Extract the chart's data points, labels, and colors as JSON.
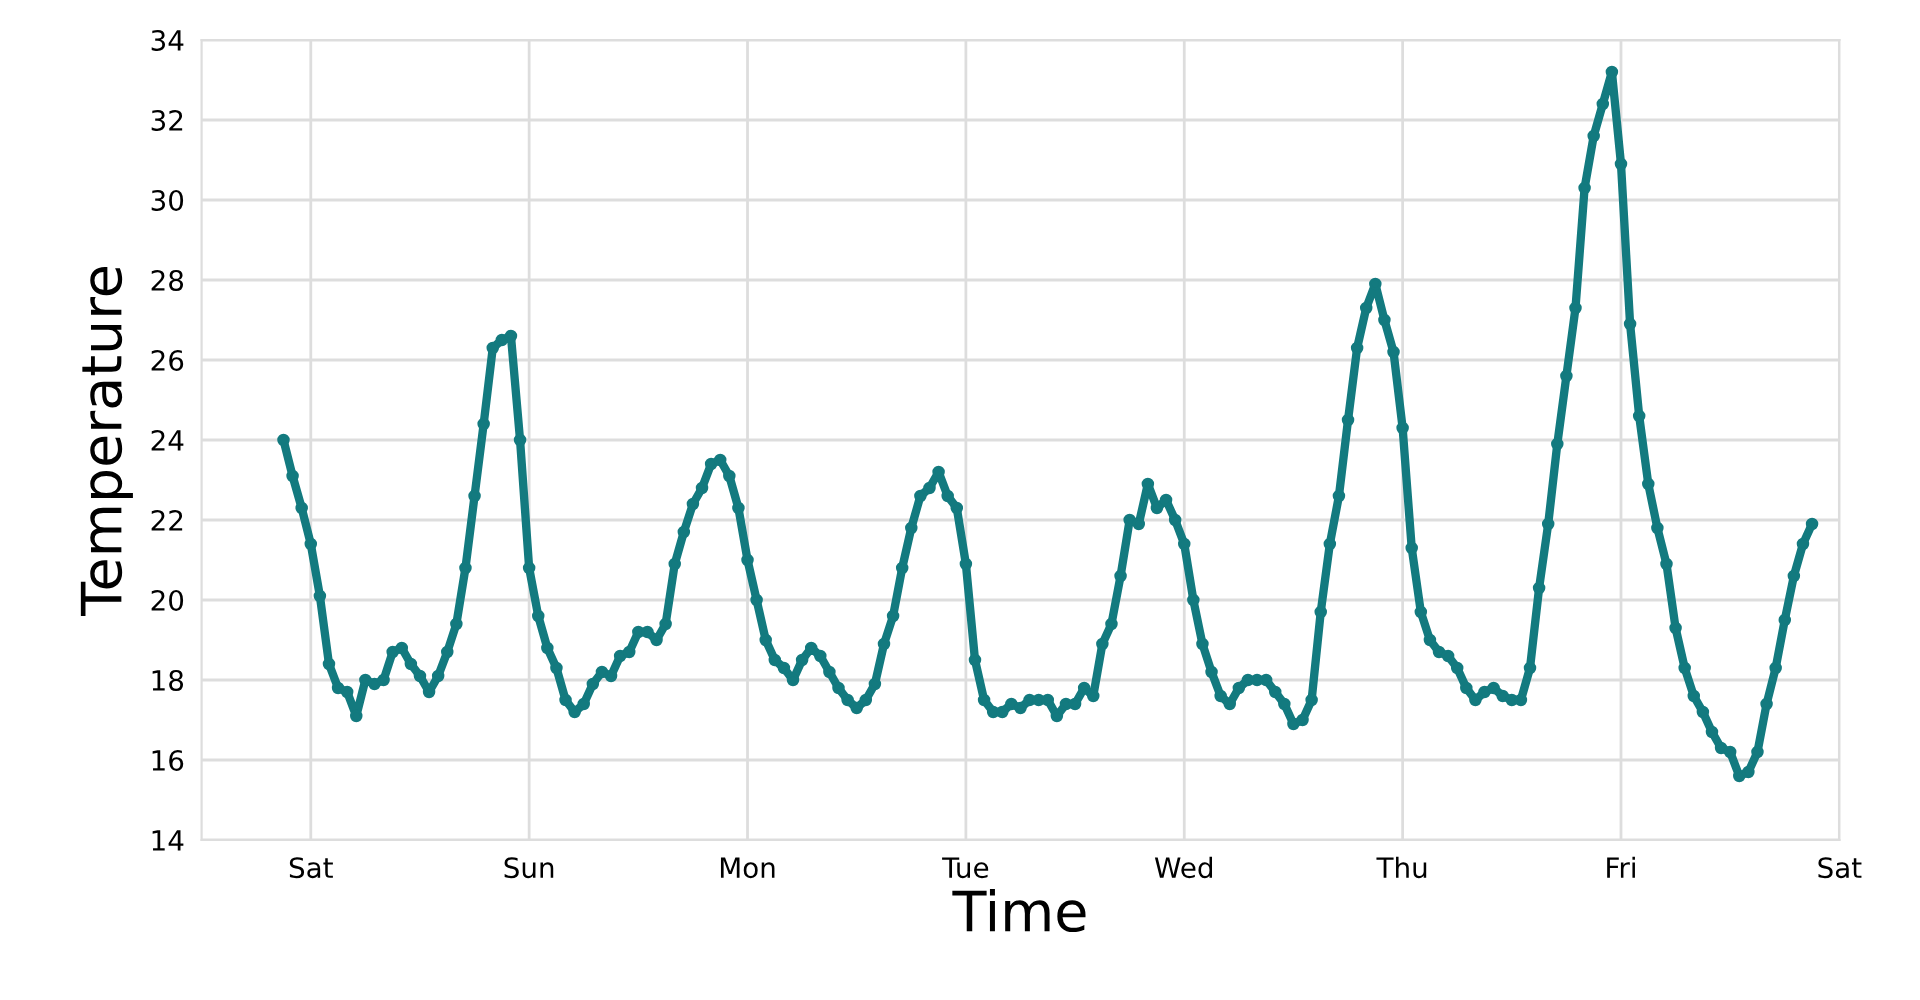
{
  "chart_data": {
    "type": "line",
    "xlabel": "Time",
    "ylabel": "Temperature",
    "categories": [
      null,
      null,
      null,
      null,
      null,
      null,
      null,
      null,
      null,
      null,
      null,
      null,
      "Sat",
      null,
      null,
      null,
      null,
      null,
      null,
      null,
      null,
      null,
      null,
      null,
      null,
      null,
      null,
      null,
      null,
      null,
      null,
      null,
      null,
      null,
      null,
      null,
      "Sun",
      null,
      null,
      null,
      null,
      null,
      null,
      null,
      null,
      null,
      null,
      null,
      null,
      null,
      null,
      null,
      null,
      null,
      null,
      null,
      null,
      null,
      null,
      null,
      "Mon",
      null,
      null,
      null,
      null,
      null,
      null,
      null,
      null,
      null,
      null,
      null,
      null,
      null,
      null,
      null,
      null,
      null,
      null,
      null,
      null,
      null,
      null,
      null,
      "Tue",
      null,
      null,
      null,
      null,
      null,
      null,
      null,
      null,
      null,
      null,
      null,
      null,
      null,
      null,
      null,
      null,
      null,
      null,
      null,
      null,
      null,
      null,
      null,
      "Wed",
      null,
      null,
      null,
      null,
      null,
      null,
      null,
      null,
      null,
      null,
      null,
      null,
      null,
      null,
      null,
      null,
      null,
      null,
      null,
      null,
      null,
      null,
      null,
      "Thu",
      null,
      null,
      null,
      null,
      null,
      null,
      null,
      null,
      null,
      null,
      null,
      null,
      null,
      null,
      null,
      null,
      null,
      null,
      null,
      null,
      null,
      null,
      null,
      "Fri",
      null,
      null,
      null,
      null,
      null,
      null,
      null,
      null,
      null,
      null,
      null,
      null,
      null,
      null,
      null,
      null,
      null,
      null,
      null,
      null,
      null,
      null,
      null,
      "Sat"
    ],
    "ylim": [
      14,
      34
    ],
    "yticks": [
      14,
      16,
      18,
      20,
      22,
      24,
      26,
      28,
      30,
      32,
      34
    ],
    "grid": true,
    "legend": false,
    "marker": "circle",
    "line_style": "solid",
    "series": [
      {
        "color": "#137a7f",
        "values": [
          null,
          null,
          null,
          null,
          null,
          null,
          null,
          null,
          null,
          24.0,
          23.1,
          22.3,
          21.4,
          20.1,
          18.4,
          17.8,
          17.7,
          17.1,
          18.0,
          17.9,
          18.0,
          18.7,
          18.8,
          18.4,
          18.1,
          17.7,
          18.1,
          18.7,
          19.4,
          20.8,
          22.6,
          24.4,
          26.3,
          26.5,
          26.6,
          24.0,
          20.8,
          19.6,
          18.8,
          18.3,
          17.5,
          17.2,
          17.4,
          17.9,
          18.2,
          18.1,
          18.6,
          18.7,
          19.2,
          19.2,
          19.0,
          19.4,
          20.9,
          21.7,
          22.4,
          22.8,
          23.4,
          23.5,
          23.1,
          22.3,
          21.0,
          20.0,
          19.0,
          18.5,
          18.3,
          18.0,
          18.5,
          18.8,
          18.6,
          18.2,
          17.8,
          17.5,
          17.3,
          17.5,
          17.9,
          18.9,
          19.6,
          20.8,
          21.8,
          22.6,
          22.8,
          23.2,
          22.6,
          22.3,
          20.9,
          18.5,
          17.5,
          17.2,
          17.2,
          17.4,
          17.3,
          17.5,
          17.5,
          17.5,
          17.1,
          17.4,
          17.4,
          17.8,
          17.6,
          18.9,
          19.4,
          20.6,
          22.0,
          21.9,
          22.9,
          22.3,
          22.5,
          22.0,
          21.4,
          20.0,
          18.9,
          18.2,
          17.6,
          17.4,
          17.8,
          18.0,
          18.0,
          18.0,
          17.7,
          17.4,
          16.9,
          17.0,
          17.5,
          19.7,
          21.4,
          22.6,
          24.5,
          26.3,
          27.3,
          27.9,
          27.0,
          26.2,
          24.3,
          21.3,
          19.7,
          19.0,
          18.7,
          18.6,
          18.3,
          17.8,
          17.5,
          17.7,
          17.8,
          17.6,
          17.5,
          17.5,
          18.3,
          20.3,
          21.9,
          23.9,
          25.6,
          27.3,
          30.3,
          31.6,
          32.4,
          33.2,
          30.9,
          26.9,
          24.6,
          22.9,
          21.8,
          20.9,
          19.3,
          18.3,
          17.6,
          17.2,
          16.7,
          16.3,
          16.2,
          15.6,
          15.7,
          16.2,
          17.4,
          18.3,
          19.5,
          20.6,
          21.4,
          21.9,
          null,
          null,
          null
        ]
      }
    ]
  }
}
